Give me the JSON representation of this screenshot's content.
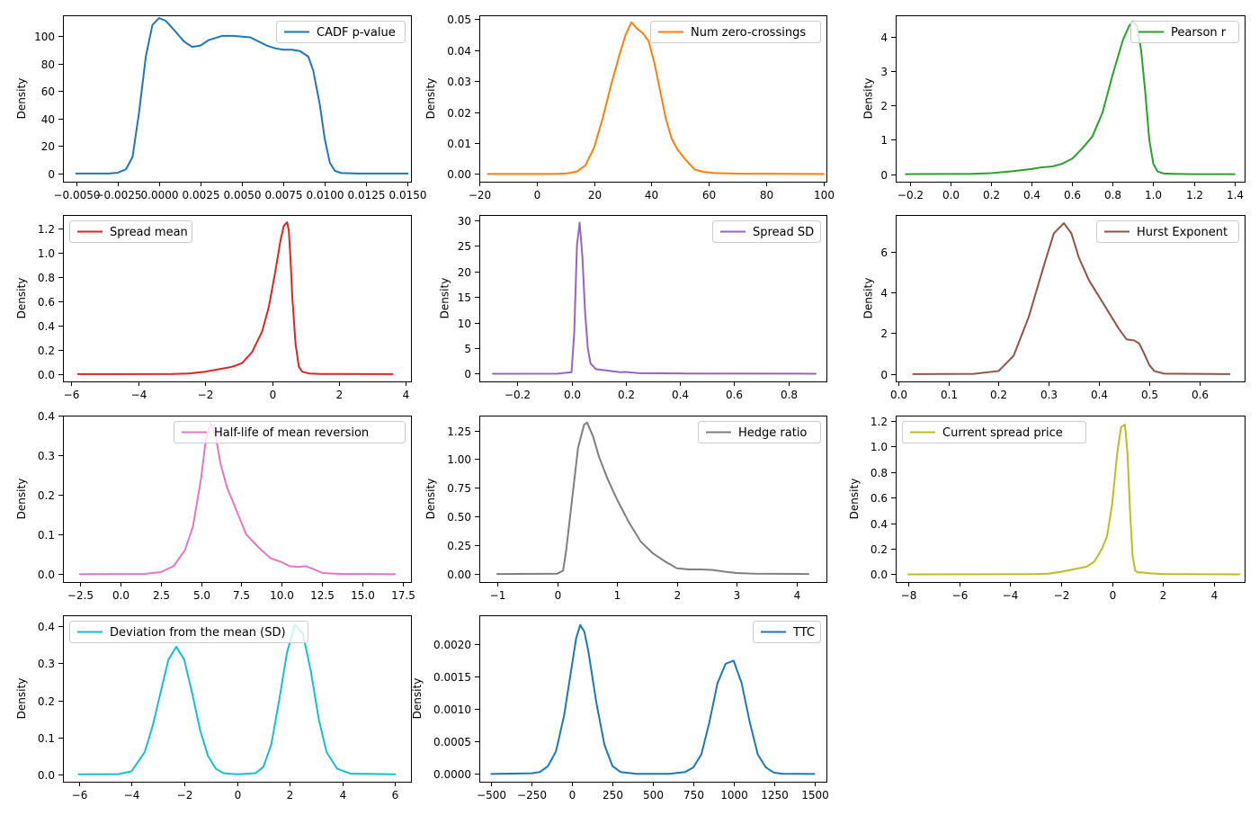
{
  "chart_data": [
    {
      "type": "line",
      "series_name": "CADF p-value",
      "color": "#1f77b4",
      "legend_loc": "upper-right",
      "ylabel": "Density",
      "xlim": [
        -0.0058,
        0.0152
      ],
      "ylim": [
        -6,
        115
      ],
      "xticks": [
        -0.005,
        -0.0025,
        0,
        0.0025,
        0.005,
        0.0075,
        0.01,
        0.0125,
        0.015
      ],
      "xtick_labels": [
        "−0.0050",
        "−0.0025",
        "0.0000",
        "0.0025",
        "0.0050",
        "0.0075",
        "0.0100",
        "0.0125",
        "0.0150"
      ],
      "yticks": [
        0,
        20,
        40,
        60,
        80,
        100
      ],
      "ytick_labels": [
        "0",
        "20",
        "40",
        "60",
        "80",
        "100"
      ],
      "x": [
        -0.005,
        -0.003,
        -0.0025,
        -0.002,
        -0.0016,
        -0.0012,
        -0.0008,
        -0.0004,
        0.0,
        0.0004,
        0.001,
        0.0015,
        0.002,
        0.0025,
        0.003,
        0.0038,
        0.0045,
        0.0055,
        0.006,
        0.0065,
        0.007,
        0.0075,
        0.008,
        0.0085,
        0.009,
        0.0093,
        0.0097,
        0.01,
        0.0103,
        0.0106,
        0.011,
        0.012,
        0.015
      ],
      "y": [
        0,
        0,
        0.5,
        3,
        12,
        45,
        85,
        108,
        113,
        111,
        103,
        96,
        92,
        93,
        97,
        100,
        100,
        99,
        96,
        93,
        91,
        90,
        90,
        89,
        85,
        75,
        50,
        25,
        8,
        2,
        0.3,
        0,
        0
      ]
    },
    {
      "type": "line",
      "series_name": "Num zero-crossings",
      "color": "#ff7f0e",
      "legend_loc": "upper-right",
      "ylabel": "Density",
      "xlim": [
        -20,
        101
      ],
      "ylim": [
        -0.0025,
        0.0513
      ],
      "xticks": [
        -20,
        0,
        20,
        40,
        60,
        80,
        100
      ],
      "xtick_labels": [
        "−20",
        "0",
        "20",
        "40",
        "60",
        "80",
        "100"
      ],
      "yticks": [
        0,
        0.01,
        0.02,
        0.03,
        0.04,
        0.05
      ],
      "ytick_labels": [
        "0.00",
        "0.01",
        "0.02",
        "0.03",
        "0.04",
        "0.05"
      ],
      "x": [
        -17,
        5,
        10,
        14,
        17,
        20,
        23,
        26,
        29,
        31,
        33,
        35,
        37,
        39,
        41,
        43,
        45,
        47,
        49,
        52,
        55,
        58,
        62,
        70,
        100
      ],
      "y": [
        0,
        0,
        0.0001,
        0.0008,
        0.0028,
        0.0085,
        0.018,
        0.029,
        0.039,
        0.045,
        0.049,
        0.047,
        0.0455,
        0.043,
        0.036,
        0.027,
        0.018,
        0.0115,
        0.008,
        0.0045,
        0.0015,
        0.0007,
        0.0003,
        0.0001,
        0
      ]
    },
    {
      "type": "line",
      "series_name": "Pearson r",
      "color": "#2ca02c",
      "legend_loc": "upper-right",
      "ylabel": "Density",
      "xlim": [
        -0.27,
        1.45
      ],
      "ylim": [
        -0.22,
        4.62
      ],
      "xticks": [
        -0.2,
        0.0,
        0.2,
        0.4,
        0.6,
        0.8,
        1.0,
        1.2,
        1.4
      ],
      "xtick_labels": [
        "−0.2",
        "0.0",
        "0.2",
        "0.4",
        "0.6",
        "0.8",
        "1.0",
        "1.2",
        "1.4"
      ],
      "yticks": [
        0,
        1,
        2,
        3,
        4
      ],
      "ytick_labels": [
        "0",
        "1",
        "2",
        "3",
        "4"
      ],
      "x": [
        -0.22,
        0.1,
        0.2,
        0.3,
        0.4,
        0.45,
        0.5,
        0.55,
        0.6,
        0.65,
        0.7,
        0.75,
        0.8,
        0.85,
        0.88,
        0.9,
        0.92,
        0.94,
        0.96,
        0.98,
        1.0,
        1.02,
        1.05,
        1.1,
        1.2,
        1.4
      ],
      "y": [
        0,
        0.01,
        0.03,
        0.08,
        0.15,
        0.2,
        0.22,
        0.3,
        0.45,
        0.75,
        1.1,
        1.8,
        2.9,
        3.9,
        4.3,
        4.45,
        4.3,
        3.6,
        2.4,
        1.0,
        0.3,
        0.08,
        0.02,
        0.01,
        0.0,
        0.0
      ]
    },
    {
      "type": "line",
      "series_name": "Spread mean",
      "color": "#d62728",
      "legend_loc": "upper-left",
      "ylabel": "Density",
      "xlim": [
        -6.25,
        4.15
      ],
      "ylim": [
        -0.06,
        1.31
      ],
      "xticks": [
        -6,
        -4,
        -2,
        0,
        2,
        4
      ],
      "xtick_labels": [
        "−6",
        "−4",
        "−2",
        "0",
        "2",
        "4"
      ],
      "yticks": [
        0,
        0.2,
        0.4,
        0.6,
        0.8,
        1.0,
        1.2
      ],
      "ytick_labels": [
        "0.0",
        "0.2",
        "0.4",
        "0.6",
        "0.8",
        "1.0",
        "1.2"
      ],
      "x": [
        -5.8,
        -3.0,
        -2.5,
        -2.0,
        -1.6,
        -1.2,
        -0.9,
        -0.6,
        -0.3,
        -0.1,
        0.1,
        0.25,
        0.35,
        0.45,
        0.5,
        0.55,
        0.6,
        0.7,
        0.8,
        0.9,
        1.1,
        1.5,
        3.6
      ],
      "y": [
        0,
        0.001,
        0.005,
        0.02,
        0.04,
        0.06,
        0.09,
        0.18,
        0.35,
        0.55,
        0.85,
        1.1,
        1.22,
        1.25,
        1.18,
        0.95,
        0.65,
        0.25,
        0.06,
        0.02,
        0.005,
        0.001,
        0
      ]
    },
    {
      "type": "line",
      "series_name": "Spread SD",
      "color": "#9467bd",
      "legend_loc": "upper-right",
      "ylabel": "Density",
      "xlim": [
        -0.34,
        0.94
      ],
      "ylim": [
        -1.5,
        31.0
      ],
      "xticks": [
        -0.2,
        0.0,
        0.2,
        0.4,
        0.6,
        0.8
      ],
      "xtick_labels": [
        "−0.2",
        "0.0",
        "0.2",
        "0.4",
        "0.6",
        "0.8"
      ],
      "yticks": [
        0,
        5,
        10,
        15,
        20,
        25,
        30
      ],
      "ytick_labels": [
        "0",
        "5",
        "10",
        "15",
        "20",
        "25",
        "30"
      ],
      "x": [
        -0.29,
        -0.05,
        0.0,
        0.01,
        0.02,
        0.03,
        0.04,
        0.05,
        0.06,
        0.07,
        0.09,
        0.12,
        0.15,
        0.18,
        0.2,
        0.25,
        0.4,
        0.9
      ],
      "y": [
        0,
        0.02,
        0.3,
        8,
        25,
        29.5,
        23,
        12,
        5,
        2,
        0.9,
        0.7,
        0.5,
        0.3,
        0.35,
        0.1,
        0.05,
        0
      ]
    },
    {
      "type": "line",
      "series_name": "Hurst Exponent",
      "color": "#8c564b",
      "legend_loc": "upper-right",
      "ylabel": "Density",
      "xlim": [
        -0.005,
        0.69
      ],
      "ylim": [
        -0.36,
        7.8
      ],
      "xticks": [
        0.0,
        0.1,
        0.2,
        0.3,
        0.4,
        0.5,
        0.6
      ],
      "xtick_labels": [
        "0.0",
        "0.1",
        "0.2",
        "0.3",
        "0.4",
        "0.5",
        "0.6"
      ],
      "yticks": [
        0,
        2,
        4,
        6
      ],
      "ytick_labels": [
        "0",
        "2",
        "4",
        "6"
      ],
      "x": [
        0.03,
        0.15,
        0.2,
        0.23,
        0.26,
        0.29,
        0.31,
        0.33,
        0.345,
        0.36,
        0.38,
        0.4,
        0.42,
        0.44,
        0.455,
        0.47,
        0.48,
        0.49,
        0.5,
        0.51,
        0.53,
        0.66
      ],
      "y": [
        0,
        0.01,
        0.15,
        0.9,
        2.8,
        5.3,
        6.9,
        7.4,
        6.9,
        5.7,
        4.6,
        3.8,
        3.0,
        2.2,
        1.7,
        1.65,
        1.5,
        1.0,
        0.45,
        0.15,
        0.02,
        0
      ]
    },
    {
      "type": "line",
      "series_name": "Half-life of mean reversion",
      "color": "#e377c2",
      "legend_loc": "upper-right",
      "ylabel": "Density",
      "xlim": [
        -3.55,
        18.0
      ],
      "ylim": [
        -0.02,
        0.4
      ],
      "xticks": [
        -2.5,
        0.0,
        2.5,
        5.0,
        7.5,
        10.0,
        12.5,
        15.0,
        17.5
      ],
      "xtick_labels": [
        "−2.5",
        "0.0",
        "2.5",
        "5.0",
        "7.5",
        "10.0",
        "12.5",
        "15.0",
        "17.5"
      ],
      "yticks": [
        0,
        0.1,
        0.2,
        0.3,
        0.4
      ],
      "ytick_labels": [
        "0.0",
        "0.1",
        "0.2",
        "0.3",
        "0.4"
      ],
      "x": [
        -2.5,
        1.5,
        2.5,
        3.3,
        4.0,
        4.5,
        5.0,
        5.3,
        5.6,
        5.9,
        6.2,
        6.6,
        7.2,
        7.8,
        8.5,
        9.3,
        10.0,
        10.5,
        11.0,
        11.5,
        12.0,
        12.5,
        13.5,
        17.0
      ],
      "y": [
        0,
        0.0005,
        0.005,
        0.02,
        0.06,
        0.12,
        0.24,
        0.34,
        0.38,
        0.35,
        0.28,
        0.22,
        0.16,
        0.1,
        0.07,
        0.04,
        0.03,
        0.02,
        0.018,
        0.02,
        0.012,
        0.003,
        0.0005,
        0
      ]
    },
    {
      "type": "line",
      "series_name": "Hedge ratio",
      "color": "#7f7f7f",
      "legend_loc": "upper-right",
      "ylabel": "Density",
      "xlim": [
        -1.3,
        4.5
      ],
      "ylim": [
        -0.07,
        1.38
      ],
      "xticks": [
        -1,
        0,
        1,
        2,
        3,
        4
      ],
      "xtick_labels": [
        "−1",
        "0",
        "1",
        "2",
        "3",
        "4"
      ],
      "yticks": [
        0,
        0.25,
        0.5,
        0.75,
        1.0,
        1.25
      ],
      "ytick_labels": [
        "0.00",
        "0.25",
        "0.50",
        "0.75",
        "1.00",
        "1.25"
      ],
      "x": [
        -1.0,
        0.0,
        0.1,
        0.15,
        0.25,
        0.35,
        0.45,
        0.5,
        0.6,
        0.7,
        0.85,
        1.0,
        1.2,
        1.4,
        1.6,
        1.8,
        2.0,
        2.2,
        2.4,
        2.6,
        2.8,
        3.0,
        3.3,
        4.2
      ],
      "y": [
        0,
        0.002,
        0.03,
        0.2,
        0.65,
        1.1,
        1.3,
        1.32,
        1.2,
        1.02,
        0.82,
        0.65,
        0.45,
        0.28,
        0.18,
        0.11,
        0.05,
        0.04,
        0.04,
        0.035,
        0.02,
        0.008,
        0.002,
        0
      ]
    },
    {
      "type": "line",
      "series_name": "Current spread price",
      "color": "#bcbd22",
      "legend_loc": "upper-left",
      "ylabel": "Density",
      "xlim": [
        -8.5,
        5.2
      ],
      "ylim": [
        -0.06,
        1.24
      ],
      "xticks": [
        -8,
        -6,
        -4,
        -2,
        0,
        2,
        4
      ],
      "xtick_labels": [
        "−8",
        "−6",
        "−4",
        "−2",
        "0",
        "2",
        "4"
      ],
      "yticks": [
        0,
        0.2,
        0.4,
        0.6,
        0.8,
        1.0,
        1.2
      ],
      "ytick_labels": [
        "0.0",
        "0.2",
        "0.4",
        "0.6",
        "0.8",
        "1.0",
        "1.2"
      ],
      "x": [
        -8.0,
        -3.0,
        -2.5,
        -2.0,
        -1.5,
        -1.0,
        -0.7,
        -0.4,
        -0.2,
        0.0,
        0.2,
        0.35,
        0.5,
        0.6,
        0.7,
        0.8,
        0.9,
        1.0,
        1.2,
        1.5,
        2.0,
        5.0
      ],
      "y": [
        0,
        0.002,
        0.005,
        0.02,
        0.04,
        0.06,
        0.1,
        0.2,
        0.3,
        0.55,
        0.95,
        1.15,
        1.17,
        0.95,
        0.5,
        0.15,
        0.03,
        0.015,
        0.015,
        0.008,
        0.002,
        0
      ]
    },
    {
      "type": "line",
      "series_name": "Deviation from the mean (SD)",
      "color": "#17becf",
      "legend_loc": "upper-left",
      "ylabel": "Density",
      "xlim": [
        -6.6,
        6.6
      ],
      "ylim": [
        -0.02,
        0.43
      ],
      "xticks": [
        -6,
        -4,
        -2,
        0,
        2,
        4,
        6
      ],
      "xtick_labels": [
        "−6",
        "−4",
        "−2",
        "0",
        "2",
        "4",
        "6"
      ],
      "yticks": [
        0,
        0.1,
        0.2,
        0.3,
        0.4
      ],
      "ytick_labels": [
        "0.0",
        "0.1",
        "0.2",
        "0.3",
        "0.4"
      ],
      "x": [
        -6.0,
        -4.5,
        -4.0,
        -3.5,
        -3.2,
        -2.9,
        -2.6,
        -2.3,
        -2.0,
        -1.7,
        -1.4,
        -1.1,
        -0.8,
        -0.5,
        0.0,
        0.7,
        1.0,
        1.3,
        1.6,
        1.9,
        2.2,
        2.5,
        2.8,
        3.1,
        3.4,
        3.8,
        4.3,
        6.0
      ],
      "y": [
        0,
        0.0005,
        0.008,
        0.06,
        0.13,
        0.22,
        0.31,
        0.345,
        0.31,
        0.22,
        0.12,
        0.05,
        0.015,
        0.003,
        0,
        0.003,
        0.02,
        0.08,
        0.2,
        0.33,
        0.405,
        0.38,
        0.28,
        0.15,
        0.06,
        0.015,
        0.002,
        0
      ]
    },
    {
      "type": "line",
      "series_name": "TTC",
      "color": "#1f77b4",
      "legend_loc": "upper-right",
      "ylabel": "Density",
      "xlim": [
        -575,
        1575
      ],
      "ylim": [
        -0.00012,
        0.00245
      ],
      "xticks": [
        -500,
        -250,
        0,
        250,
        500,
        750,
        1000,
        1250,
        1500
      ],
      "xtick_labels": [
        "−500",
        "−250",
        "0",
        "250",
        "500",
        "750",
        "1000",
        "1250",
        "1500"
      ],
      "yticks": [
        0,
        0.0005,
        0.001,
        0.0015,
        0.002
      ],
      "ytick_labels": [
        "0.0000",
        "0.0005",
        "0.0010",
        "0.0015",
        "0.0020"
      ],
      "x": [
        -500,
        -250,
        -200,
        -150,
        -100,
        -50,
        0,
        25,
        50,
        75,
        100,
        150,
        200,
        250,
        300,
        400,
        600,
        700,
        750,
        800,
        850,
        900,
        950,
        1000,
        1050,
        1100,
        1150,
        1200,
        1250,
        1300,
        1500
      ],
      "y": [
        0,
        1e-05,
        3e-05,
        0.00012,
        0.00035,
        0.0009,
        0.0017,
        0.0021,
        0.0023,
        0.0022,
        0.0019,
        0.0011,
        0.00045,
        0.00012,
        3e-05,
        2e-06,
        2e-06,
        3e-05,
        0.0001,
        0.0003,
        0.0008,
        0.0014,
        0.0017,
        0.00175,
        0.0014,
        0.0008,
        0.0003,
        0.0001,
        2e-05,
        3e-06,
        0
      ]
    }
  ]
}
